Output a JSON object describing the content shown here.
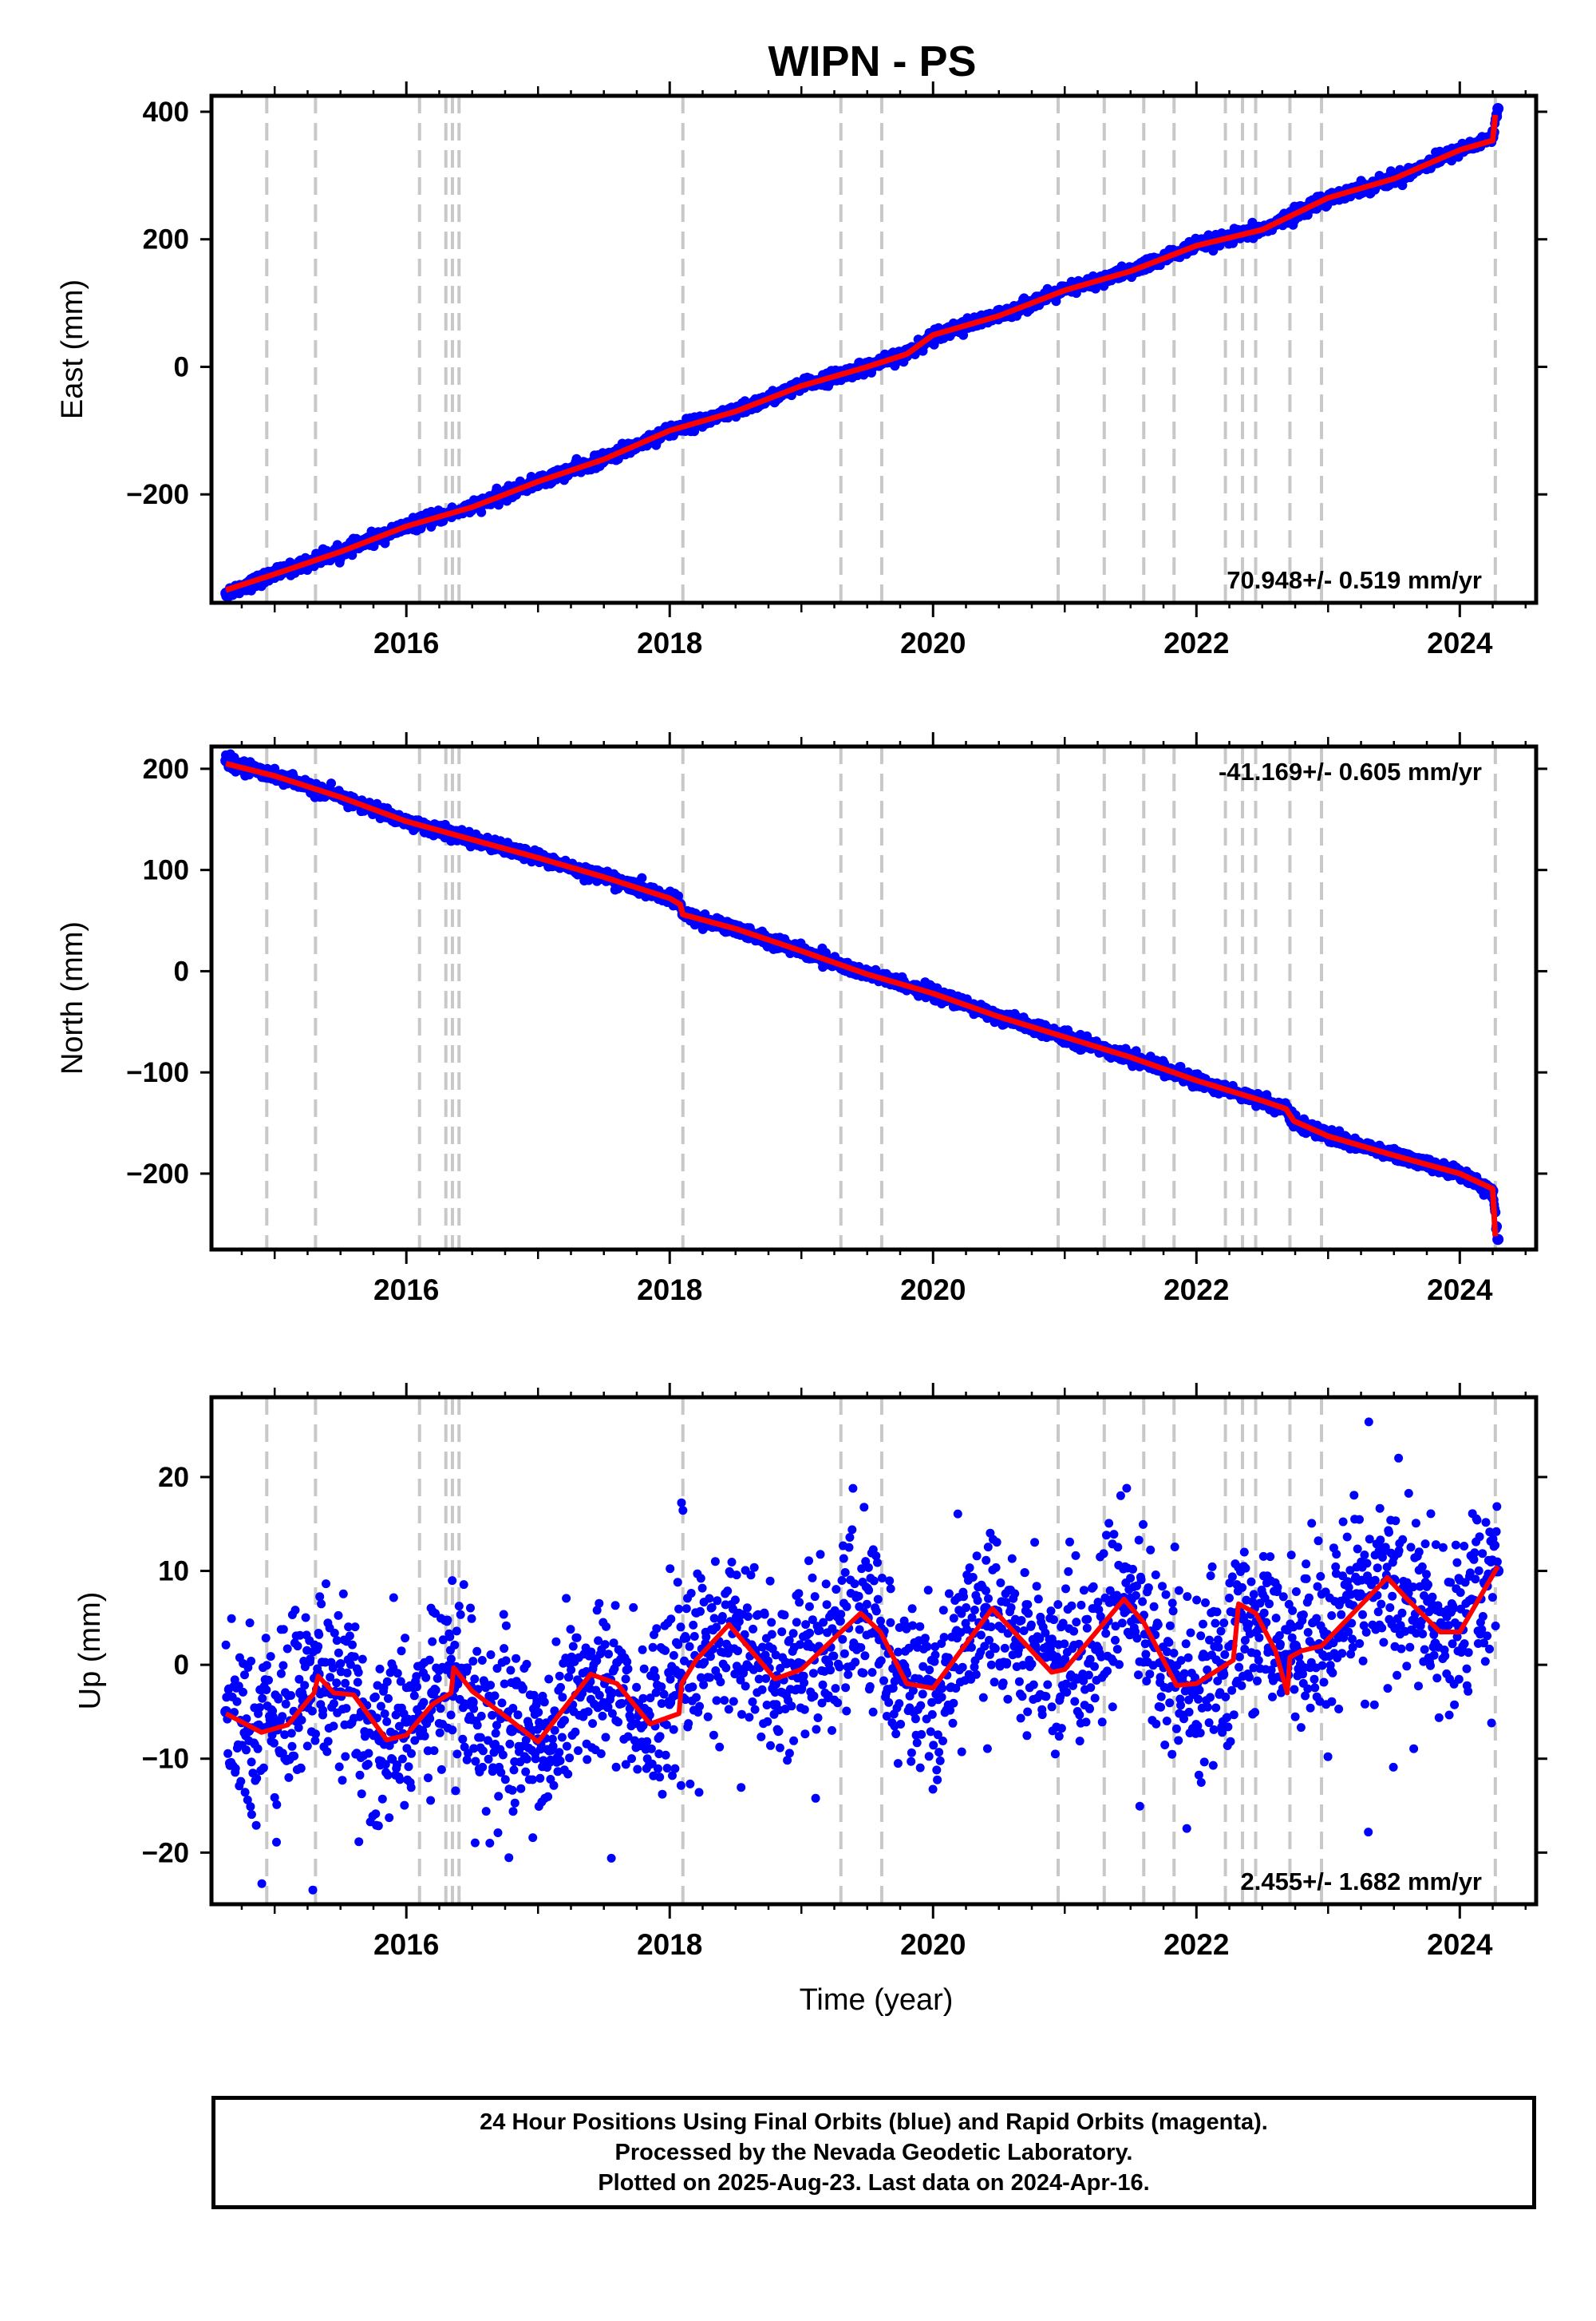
{
  "title": "WIPN - PS",
  "colors": {
    "data": "#0000ff",
    "model": "#ff0000",
    "steps": "#c8c8c8",
    "frame": "#000000"
  },
  "chart_data": [
    {
      "type": "scatter",
      "ylabel": "East (mm)",
      "xlabel": "",
      "rate": "70.948+/- 0.519 mm/yr",
      "rate_position": "bottom-right",
      "xlim": [
        2014.52,
        2024.58
      ],
      "ylim": [
        -370,
        425
      ],
      "yticks": [
        -200,
        0,
        200,
        400
      ],
      "yticklabels": [
        "−200",
        "0",
        "200",
        "400"
      ],
      "xticks": [
        2016,
        2018,
        2020,
        2022,
        2024
      ],
      "xticklabels": [
        "2016",
        "2018",
        "2020",
        "2022",
        "2024"
      ],
      "series": [
        {
          "role": "daily positions",
          "color": "#0000ff",
          "x": [
            2014.63,
            2015.0,
            2015.5,
            2016.0,
            2016.5,
            2017.0,
            2017.5,
            2018.0,
            2018.5,
            2019.0,
            2019.5,
            2019.8,
            2020.0,
            2020.5,
            2021.0,
            2021.5,
            2022.0,
            2022.5,
            2023.0,
            2023.5,
            2024.0,
            2024.25,
            2024.29
          ],
          "y": [
            -355,
            -325,
            -290,
            -250,
            -220,
            -180,
            -145,
            -100,
            -70,
            -30,
            0,
            20,
            50,
            80,
            120,
            150,
            190,
            215,
            265,
            295,
            340,
            360,
            405
          ]
        },
        {
          "role": "model",
          "color": "#ff0000",
          "x": [
            2014.63,
            2015.0,
            2015.5,
            2016.0,
            2016.5,
            2017.0,
            2017.5,
            2018.0,
            2018.5,
            2019.0,
            2019.5,
            2019.8,
            2020.0,
            2020.5,
            2021.0,
            2021.5,
            2022.0,
            2022.5,
            2023.0,
            2023.5,
            2024.0,
            2024.25,
            2024.27
          ],
          "y": [
            -350,
            -325,
            -290,
            -250,
            -220,
            -180,
            -145,
            -100,
            -70,
            -30,
            0,
            20,
            50,
            80,
            120,
            150,
            190,
            215,
            265,
            295,
            340,
            355,
            395
          ]
        }
      ]
    },
    {
      "type": "scatter",
      "ylabel": "North (mm)",
      "xlabel": "",
      "rate": "-41.169+/- 0.605 mm/yr",
      "rate_position": "top-right",
      "xlim": [
        2014.52,
        2024.58
      ],
      "ylim": [
        -275,
        222
      ],
      "yticks": [
        -200,
        -100,
        0,
        100,
        200
      ],
      "yticklabels": [
        "−200",
        "−100",
        "0",
        "100",
        "200"
      ],
      "xticks": [
        2016,
        2018,
        2020,
        2022,
        2024
      ],
      "xticklabels": [
        "2016",
        "2018",
        "2020",
        "2022",
        "2024"
      ],
      "series": [
        {
          "role": "daily positions",
          "color": "#0000ff",
          "x": [
            2014.63,
            2015.0,
            2015.5,
            2016.0,
            2016.5,
            2017.0,
            2017.5,
            2018.0,
            2018.08,
            2018.1,
            2018.5,
            2019.0,
            2019.5,
            2020.0,
            2020.5,
            2021.0,
            2021.5,
            2022.0,
            2022.5,
            2022.68,
            2022.74,
            2023.0,
            2023.5,
            2024.0,
            2024.25,
            2024.29
          ],
          "y": [
            208,
            193,
            172,
            148,
            130,
            112,
            93,
            72,
            66,
            56,
            42,
            20,
            -3,
            -22,
            -45,
            -65,
            -85,
            -108,
            -128,
            -136,
            -148,
            -163,
            -182,
            -200,
            -217,
            -265
          ]
        },
        {
          "role": "model",
          "color": "#ff0000",
          "x": [
            2014.63,
            2015.0,
            2015.5,
            2016.0,
            2016.5,
            2017.0,
            2017.5,
            2018.0,
            2018.08,
            2018.1,
            2018.5,
            2019.0,
            2019.5,
            2020.0,
            2020.5,
            2021.0,
            2021.5,
            2022.0,
            2022.5,
            2022.68,
            2022.74,
            2023.0,
            2023.5,
            2024.0,
            2024.25,
            2024.27
          ],
          "y": [
            205,
            193,
            172,
            148,
            130,
            112,
            93,
            72,
            66,
            56,
            42,
            20,
            -3,
            -22,
            -45,
            -65,
            -85,
            -108,
            -128,
            -136,
            -148,
            -163,
            -182,
            -200,
            -215,
            -262
          ]
        }
      ]
    },
    {
      "type": "scatter",
      "ylabel": "Up (mm)",
      "xlabel": "Time (year)",
      "rate": "2.455+/- 1.682 mm/yr",
      "rate_position": "bottom-right",
      "xlim": [
        2014.52,
        2024.58
      ],
      "ylim": [
        -25.5,
        28.5
      ],
      "yticks": [
        -20,
        -10,
        0,
        10,
        20
      ],
      "yticklabels": [
        "−20",
        "−10",
        "0",
        "10",
        "20"
      ],
      "xticks": [
        2016,
        2018,
        2020,
        2022,
        2024
      ],
      "xticklabels": [
        "2016",
        "2018",
        "2020",
        "2022",
        "2024"
      ],
      "scatter_std": 4.5,
      "series": [
        {
          "role": "daily positions",
          "color": "#0000ff",
          "x": [
            2014.63,
            2014.8,
            2015.0,
            2015.2,
            2015.33,
            2015.5,
            2015.8,
            2016.0,
            2016.2,
            2016.35,
            2016.5,
            2016.8,
            2017.0,
            2017.4,
            2017.8,
            2018.0,
            2018.08,
            2018.5,
            2018.8,
            2019.0,
            2019.5,
            2019.8,
            2020.0,
            2020.4,
            2020.9,
            2021.0,
            2021.5,
            2021.8,
            2022.0,
            2022.2,
            2022.35,
            2022.5,
            2022.68,
            2022.75,
            2023.0,
            2023.5,
            2023.8,
            2024.0,
            2024.29
          ],
          "y": [
            -5,
            -7,
            -6,
            -3,
            -1,
            -3,
            -8,
            -6,
            -3,
            -1,
            -4,
            -7,
            -8,
            -1,
            -5,
            -4,
            -1,
            4,
            -2,
            0,
            5,
            -2,
            -2,
            6,
            1,
            0,
            7,
            0,
            -2,
            -1,
            5,
            4,
            1,
            2,
            3,
            9,
            4,
            4,
            10
          ]
        },
        {
          "role": "model",
          "color": "#ff0000",
          "x": [
            2014.63,
            2014.9,
            2015.1,
            2015.3,
            2015.33,
            2015.45,
            2015.6,
            2015.85,
            2016.0,
            2016.2,
            2016.34,
            2016.36,
            2016.5,
            2016.8,
            2017.0,
            2017.4,
            2017.6,
            2017.85,
            2018.07,
            2018.09,
            2018.2,
            2018.45,
            2018.8,
            2019.0,
            2019.45,
            2019.6,
            2019.8,
            2020.0,
            2020.45,
            2020.9,
            2021.0,
            2021.45,
            2021.6,
            2021.85,
            2022.0,
            2022.28,
            2022.32,
            2022.45,
            2022.6,
            2022.69,
            2022.71,
            2022.8,
            2022.95,
            2023.45,
            2023.6,
            2023.85,
            2024.0,
            2024.29
          ],
          "y": [
            -5.2,
            -7.2,
            -6.4,
            -3.0,
            -1.2,
            -3.0,
            -3.2,
            -8.0,
            -7.5,
            -4.2,
            -3.0,
            -0.3,
            -2.8,
            -6.0,
            -8.2,
            -1.0,
            -2.0,
            -6.3,
            -5.2,
            -2.0,
            0.5,
            4.3,
            -1.5,
            -0.5,
            5.5,
            3.5,
            -2.0,
            -2.5,
            6.0,
            -0.8,
            -0.5,
            7.0,
            4.5,
            -2.2,
            -2.0,
            0.5,
            6.5,
            5.5,
            1.5,
            -3.0,
            0.8,
            1.5,
            2.0,
            9.3,
            7.0,
            3.5,
            3.5,
            10.5
          ]
        }
      ]
    }
  ],
  "step_epochs": [
    2014.94,
    2015.31,
    2016.1,
    2016.3,
    2016.35,
    2016.4,
    2018.1,
    2019.3,
    2019.61,
    2020.95,
    2021.3,
    2021.6,
    2021.83,
    2022.22,
    2022.35,
    2022.45,
    2022.71,
    2022.95,
    2024.27
  ],
  "footer": {
    "line1": "24 Hour Positions Using Final Orbits (blue) and Rapid Orbits (magenta).",
    "line2": "Processed by the Nevada Geodetic Laboratory.",
    "line3": "Plotted on 2025-Aug-23. Last data on 2024-Apr-16."
  }
}
